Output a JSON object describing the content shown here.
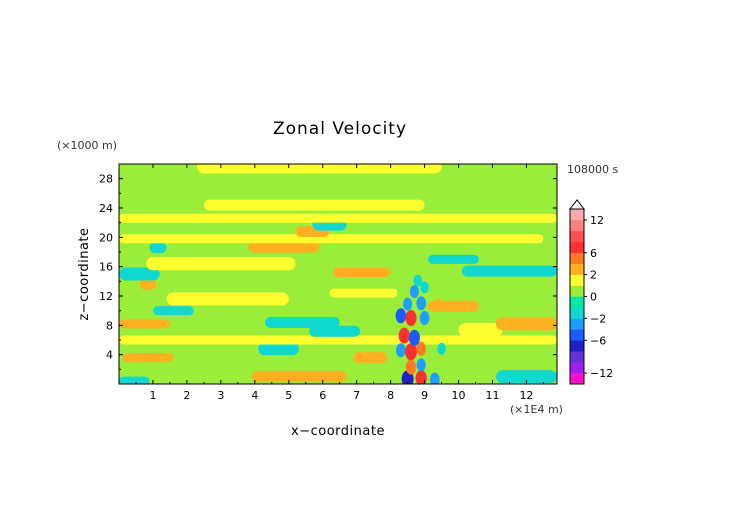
{
  "chart_data": {
    "type": "heatmap",
    "title": "Zonal Velocity",
    "time_label": "108000 s",
    "xlabel": "x−coordinate",
    "ylabel": "z−coordinate",
    "x_unit": "(×1E4 m)",
    "z_unit": "(×1000 m)",
    "x_ticks": [
      "1",
      "2",
      "3",
      "4",
      "5",
      "6",
      "7",
      "8",
      "9",
      "10",
      "11",
      "12"
    ],
    "z_ticks": [
      "4",
      "8",
      "12",
      "16",
      "20",
      "24",
      "28"
    ],
    "xlim": [
      0,
      12.9
    ],
    "zlim": [
      0,
      30
    ],
    "colorbar": {
      "labels": [
        "12",
        "6",
        "2",
        "0",
        "−2",
        "−6",
        "−12"
      ],
      "levels": [
        -14,
        -12,
        -10,
        -8,
        -6,
        -4,
        -2,
        -1,
        0,
        1,
        2,
        4,
        6,
        8,
        10,
        12,
        14
      ],
      "colors": [
        "#ff10c8",
        "#a020f0",
        "#6a30d8",
        "#2020c8",
        "#1a5cff",
        "#1e9eff",
        "#10d8d0",
        "#00e8a8",
        "#9aee3a",
        "#ffff30",
        "#ffb020",
        "#ff7a20",
        "#ff3030",
        "#ff5050",
        "#ff8080",
        "#ffaaaa"
      ],
      "extend_max": true
    },
    "bands": [
      {
        "z": 0.4,
        "v": -1.2,
        "x0": 0,
        "x1": 0.9
      },
      {
        "z": 1.0,
        "v": 2.5,
        "x0": 3.9,
        "x1": 6.7
      },
      {
        "z": 1.0,
        "v": -1.5,
        "x0": 11.1,
        "x1": 12.9
      },
      {
        "z": 3.6,
        "v": 2.2,
        "x0": 0.1,
        "x1": 1.6
      },
      {
        "z": 3.6,
        "v": 2.2,
        "x0": 6.9,
        "x1": 7.9
      },
      {
        "z": 4.8,
        "v": -1.5,
        "x0": 4.1,
        "x1": 5.3
      },
      {
        "z": 6.0,
        "v": 1.2,
        "x0": 0,
        "x1": 12.9
      },
      {
        "z": 7.2,
        "v": -1.5,
        "x0": 5.6,
        "x1": 7.1
      },
      {
        "z": 7.4,
        "v": 1.5,
        "x0": 10.0,
        "x1": 11.3
      },
      {
        "z": 8.2,
        "v": 2.5,
        "x0": 0,
        "x1": 1.5
      },
      {
        "z": 8.4,
        "v": -1.5,
        "x0": 4.3,
        "x1": 6.5
      },
      {
        "z": 8.2,
        "v": 2.5,
        "x0": 11.1,
        "x1": 12.9
      },
      {
        "z": 10.0,
        "v": -1.5,
        "x0": 1.0,
        "x1": 2.2
      },
      {
        "z": 10.6,
        "v": 2.2,
        "x0": 9.1,
        "x1": 10.6
      },
      {
        "z": 11.6,
        "v": 1.2,
        "x0": 1.4,
        "x1": 5.0
      },
      {
        "z": 12.4,
        "v": 1.0,
        "x0": 6.2,
        "x1": 8.2
      },
      {
        "z": 13.6,
        "v": 2.2,
        "x0": 0.6,
        "x1": 1.1
      },
      {
        "z": 15.0,
        "v": -1.5,
        "x0": 0,
        "x1": 1.2
      },
      {
        "z": 15.2,
        "v": 2.5,
        "x0": 6.3,
        "x1": 8.0
      },
      {
        "z": 15.4,
        "v": -1.5,
        "x0": 10.1,
        "x1": 12.9
      },
      {
        "z": 16.4,
        "v": 1.5,
        "x0": 0.8,
        "x1": 5.2
      },
      {
        "z": 17.0,
        "v": -1.2,
        "x0": 9.1,
        "x1": 10.6
      },
      {
        "z": 18.6,
        "v": -1.5,
        "x0": 0.9,
        "x1": 1.4
      },
      {
        "z": 18.8,
        "v": 2.5,
        "x0": 3.8,
        "x1": 5.9
      },
      {
        "z": 19.8,
        "v": 1.2,
        "x0": 0,
        "x1": 12.5
      },
      {
        "z": 20.8,
        "v": 2.2,
        "x0": 5.2,
        "x1": 6.2
      },
      {
        "z": 21.8,
        "v": -1.2,
        "x0": 5.7,
        "x1": 6.7
      },
      {
        "z": 22.6,
        "v": 1.2,
        "x0": 0,
        "x1": 12.9
      },
      {
        "z": 24.4,
        "v": 1.0,
        "x0": 2.5,
        "x1": 9.0
      },
      {
        "z": 29.6,
        "v": 1.2,
        "x0": 2.3,
        "x1": 9.5
      }
    ],
    "spots": [
      {
        "x": 8.5,
        "z": 0.7,
        "v": -7
      },
      {
        "x": 8.9,
        "z": 0.8,
        "v": 6
      },
      {
        "x": 9.3,
        "z": 0.6,
        "v": -4
      },
      {
        "x": 8.6,
        "z": 2.3,
        "v": 5
      },
      {
        "x": 8.9,
        "z": 2.6,
        "v": -3
      },
      {
        "x": 8.3,
        "z": 4.6,
        "v": -4
      },
      {
        "x": 8.6,
        "z": 4.4,
        "v": 7
      },
      {
        "x": 8.9,
        "z": 4.8,
        "v": 4
      },
      {
        "x": 8.4,
        "z": 6.6,
        "v": 6
      },
      {
        "x": 8.7,
        "z": 6.3,
        "v": -6
      },
      {
        "x": 9.5,
        "z": 4.8,
        "v": -2
      },
      {
        "x": 8.3,
        "z": 9.3,
        "v": -5
      },
      {
        "x": 8.6,
        "z": 9.0,
        "v": 6
      },
      {
        "x": 9.0,
        "z": 9.0,
        "v": -4
      },
      {
        "x": 8.5,
        "z": 10.9,
        "v": -3
      },
      {
        "x": 8.9,
        "z": 11.0,
        "v": -4
      },
      {
        "x": 9.4,
        "z": 10.8,
        "v": 2
      },
      {
        "x": 8.7,
        "z": 12.6,
        "v": -3
      },
      {
        "x": 9.0,
        "z": 13.2,
        "v": -2
      },
      {
        "x": 8.8,
        "z": 14.1,
        "v": -2
      }
    ]
  }
}
